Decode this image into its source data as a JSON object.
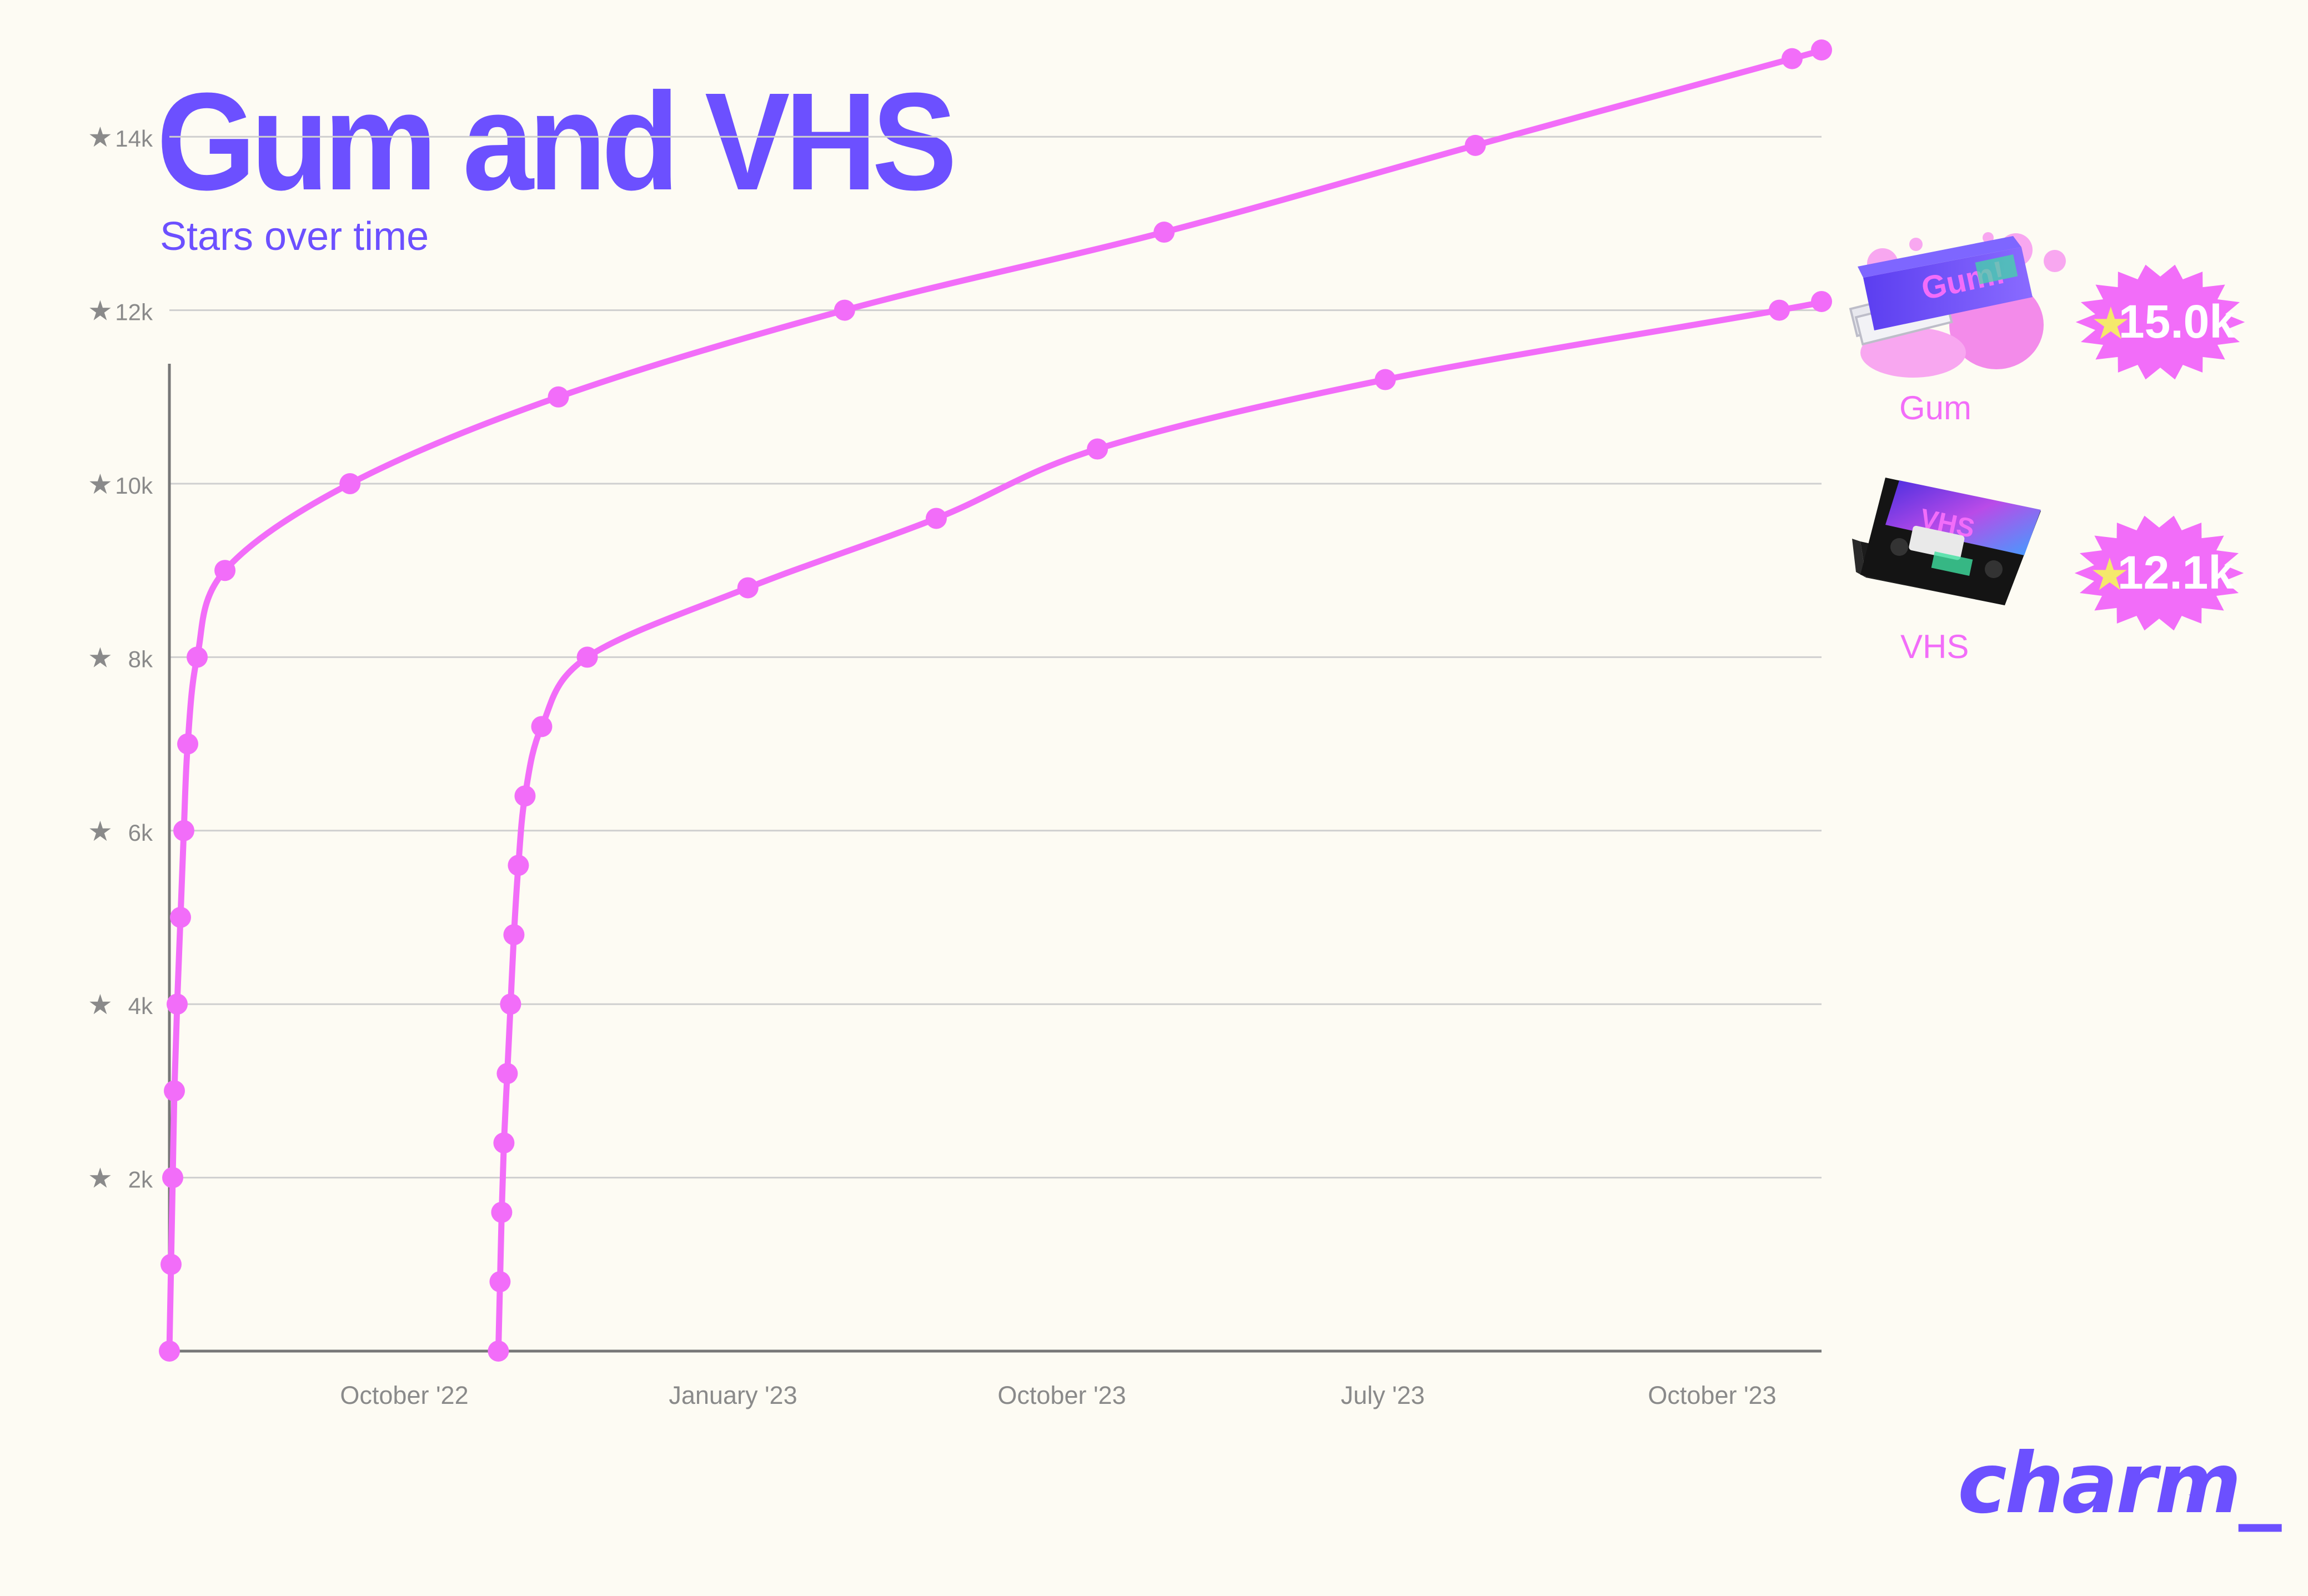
{
  "title": "Gum and VHS",
  "subtitle": "Stars over time",
  "logo": "charm_",
  "logo_tm": "™",
  "colors": {
    "background": "#FDFBF3",
    "brand": "#6C50FF",
    "series": "#F26DF9",
    "axis_text": "#8A8A8A",
    "grid": "#CFCFCF",
    "star_badge": "#F26DF9",
    "star_glyph": "#F5E96B"
  },
  "chart_data": {
    "type": "line",
    "xlabel": "",
    "ylabel": "",
    "ylim": [
      0,
      15000
    ],
    "grid": true,
    "x_tick_labels": [
      "October '22",
      "January '23",
      "October '23",
      "July '23",
      "October '23"
    ],
    "y_ticks": [
      2000,
      4000,
      6000,
      8000,
      10000,
      12000,
      14000
    ],
    "y_tick_labels": [
      "2k",
      "4k",
      "6k",
      "8k",
      "10k",
      "12k",
      "14k"
    ],
    "series": [
      {
        "name": "Gum",
        "badge": "15.0k",
        "icon": "gum-pack-icon",
        "points": [
          [
            0,
            0
          ],
          [
            3,
            1000
          ],
          [
            6,
            2000
          ],
          [
            9,
            3000
          ],
          [
            14,
            4000
          ],
          [
            20,
            5000
          ],
          [
            26,
            6000
          ],
          [
            33,
            7000
          ],
          [
            50,
            8000
          ],
          [
            100,
            9000
          ],
          [
            325,
            10000
          ],
          [
            700,
            11000
          ],
          [
            1215,
            12000
          ],
          [
            1790,
            12900
          ],
          [
            2350,
            13900
          ],
          [
            2920,
            14900
          ],
          [
            2973,
            15000
          ]
        ]
      },
      {
        "name": "VHS",
        "badge": "12.1k",
        "icon": "vhs-tape-icon",
        "points": [
          [
            592,
            0
          ],
          [
            595,
            800
          ],
          [
            598,
            1600
          ],
          [
            602,
            2400
          ],
          [
            608,
            3200
          ],
          [
            614,
            4000
          ],
          [
            620,
            4800
          ],
          [
            628,
            5600
          ],
          [
            640,
            6400
          ],
          [
            670,
            7200
          ],
          [
            752,
            8000
          ],
          [
            1041,
            8800
          ],
          [
            1380,
            9600
          ],
          [
            1670,
            10400
          ],
          [
            2188,
            11200
          ],
          [
            2897,
            12000
          ],
          [
            2973,
            12100
          ]
        ]
      }
    ]
  }
}
